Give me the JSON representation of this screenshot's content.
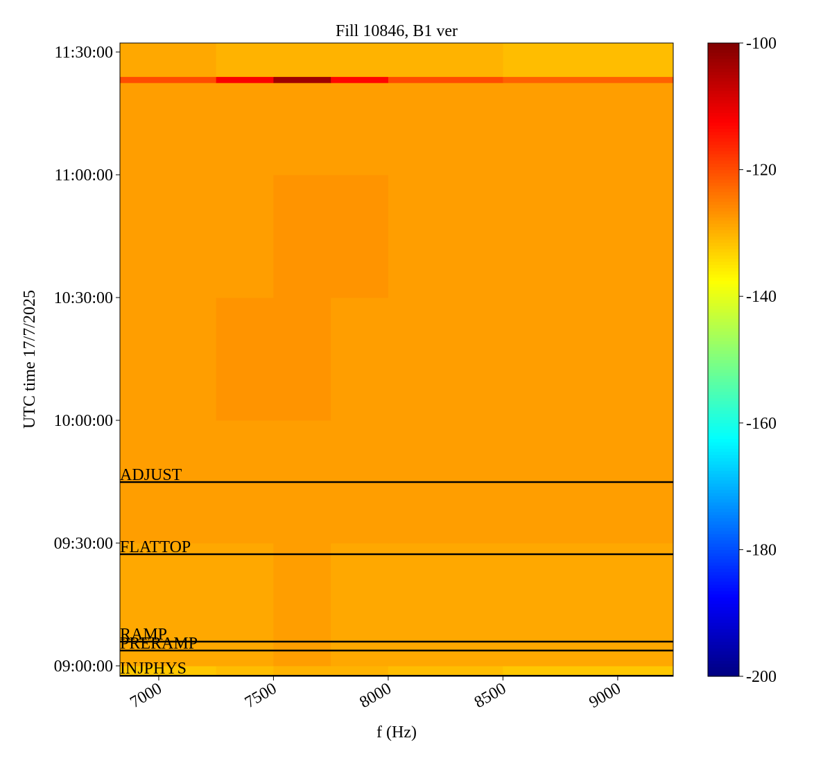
{
  "chart_data": {
    "type": "heatmap",
    "title": "Fill 10846, B1 ver",
    "xlabel": "f (Hz)",
    "ylabel": "UTC time 17/7/2025",
    "xlim": [
      6831,
      9242
    ],
    "xticks": [
      7000,
      7500,
      8000,
      8500,
      9000
    ],
    "ylim": [
      "08:57:27",
      "11:32:12"
    ],
    "yticks": [
      "09:00:00",
      "09:30:00",
      "10:00:00",
      "10:30:00",
      "11:00:00",
      "11:30:00"
    ],
    "x_edges": [
      6831,
      7250,
      7500,
      7750,
      8000,
      8500,
      9242
    ],
    "y_edges": [
      "08:57:27",
      "09:00:00",
      "09:30:00",
      "10:00:00",
      "10:30:00",
      "11:00:00",
      "11:22:30",
      "11:24:00",
      "11:32:12"
    ],
    "z": [
      [
        -132,
        -131,
        -130,
        -130,
        -131,
        -132
      ],
      [
        -129,
        -129,
        -128,
        -129,
        -129,
        -129
      ],
      [
        -128,
        -128,
        -128,
        -128,
        -128,
        -128
      ],
      [
        -128,
        -127,
        -127,
        -128,
        -128,
        -128
      ],
      [
        -128,
        -128,
        -127,
        -127,
        -128,
        -128
      ],
      [
        -128,
        -128,
        -128,
        -128,
        -128,
        -128
      ],
      [
        -120,
        -112,
        -103,
        -113,
        -120,
        -122
      ],
      [
        -129,
        -130,
        -130,
        -130,
        -130,
        -131
      ]
    ],
    "colormap": "jet",
    "clim": [
      -200,
      -100
    ],
    "cticks": [
      -200,
      -180,
      -160,
      -140,
      -120,
      -100
    ],
    "annotations": [
      {
        "text": "ADJUST",
        "time": "09:44:55"
      },
      {
        "text": "FLATTOP",
        "time": "09:27:17"
      },
      {
        "text": "RAMP",
        "time": "09:05:56"
      },
      {
        "text": "PRERAMP",
        "time": "09:03:44"
      },
      {
        "text": "INJPHYS",
        "time": "08:57:35"
      }
    ],
    "annotation_color": "#000000"
  }
}
